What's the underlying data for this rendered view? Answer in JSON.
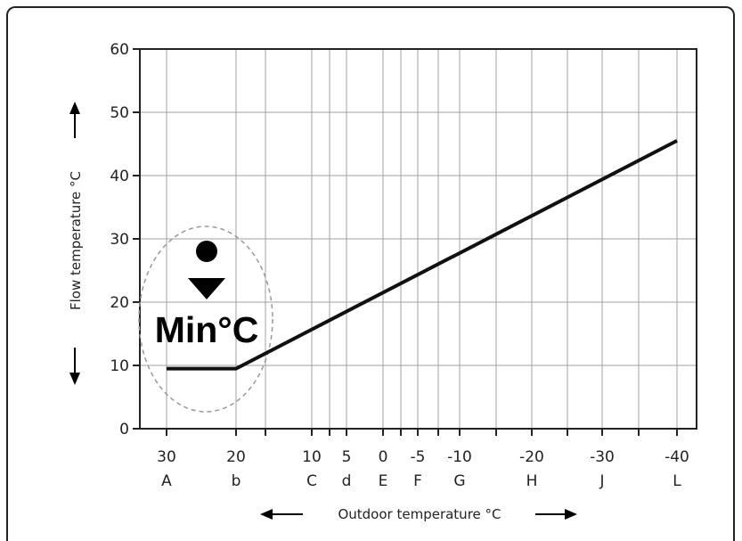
{
  "chart_data": {
    "type": "line",
    "ylabel": "Flow temperature °C",
    "xlabel": "Outdoor temperature °C",
    "ylim": [
      0,
      60
    ],
    "y_ticks": [
      "0",
      "10",
      "20",
      "30",
      "40",
      "50",
      "60"
    ],
    "x_ticks": [
      {
        "value": "30",
        "letter": "A"
      },
      {
        "value": "20",
        "letter": "b"
      },
      {
        "value": "10",
        "letter": "C"
      },
      {
        "value": "5",
        "letter": "d"
      },
      {
        "value": "0",
        "letter": "E"
      },
      {
        "value": "-5",
        "letter": "F"
      },
      {
        "value": "-10",
        "letter": "G"
      },
      {
        "value": "-20",
        "letter": "H"
      },
      {
        "value": "-30",
        "letter": "J"
      },
      {
        "value": "-40",
        "letter": "L"
      }
    ],
    "series": [
      {
        "x": [
          30,
          20,
          -40
        ],
        "y": [
          9.5,
          9.5,
          45.5
        ]
      }
    ],
    "annotation": {
      "text": "Min°C"
    },
    "grid": true,
    "colors": {
      "line": "#111111",
      "grid": "#a0a0a0",
      "annotation_outline": "#999999"
    }
  }
}
